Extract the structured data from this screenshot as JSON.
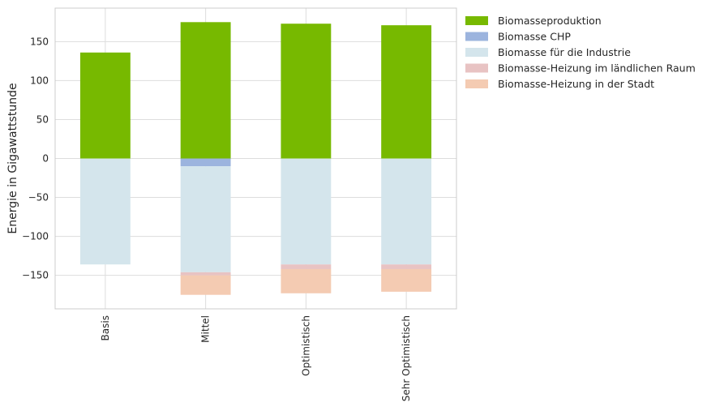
{
  "chart_data": {
    "type": "bar",
    "stacked": true,
    "title": "",
    "xlabel": "",
    "ylabel": "Energie in Gigawattstunde",
    "categories": [
      "Basis",
      "Mittel",
      "Optimistisch",
      "Sehr Optimistisch"
    ],
    "ylim": [
      -193,
      193
    ],
    "yticks": [
      -150,
      -100,
      -50,
      0,
      50,
      100,
      150
    ],
    "grid": true,
    "legend_position": "outside-top-right",
    "series": [
      {
        "name": "Biomasseproduktion",
        "color": "#77b900",
        "values": [
          136,
          175,
          173,
          171
        ]
      },
      {
        "name": "Biomasse CHP",
        "color": "#9cb4de",
        "values": [
          0,
          -10,
          0,
          0
        ]
      },
      {
        "name": "Biomasse für die Industrie",
        "color": "#d4e5ec",
        "values": [
          -136,
          -136,
          -136,
          -136
        ]
      },
      {
        "name": "Biomasse-Heizung im ländlichen Raum",
        "color": "#e8c3c3",
        "values": [
          0,
          -4,
          -6,
          -6
        ]
      },
      {
        "name": "Biomasse-Heizung in der Stadt",
        "color": "#f4cbb2",
        "values": [
          0,
          -25,
          -31,
          -29
        ]
      }
    ]
  }
}
